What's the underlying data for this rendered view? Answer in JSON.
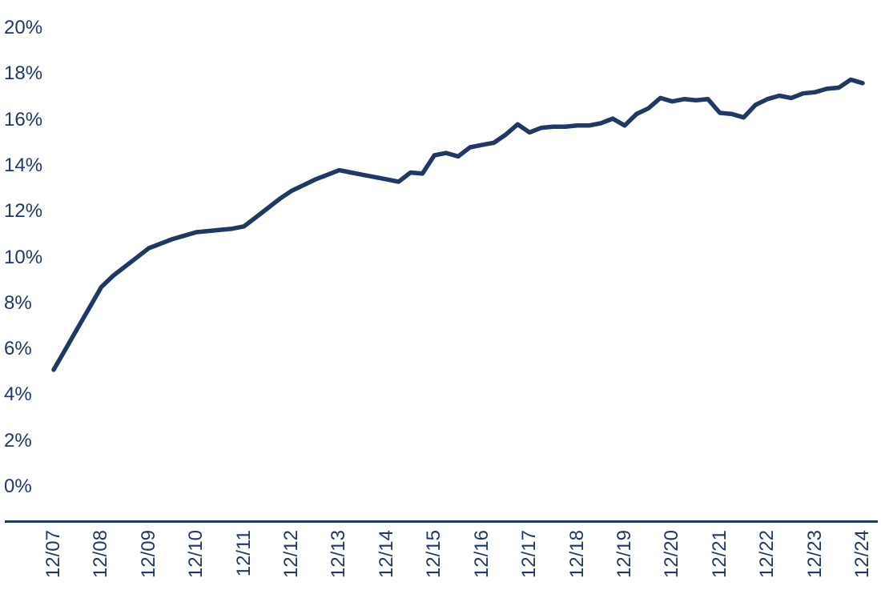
{
  "chart_data": {
    "type": "line",
    "title": "",
    "xlabel": "",
    "ylabel": "",
    "ylim": [
      0,
      20
    ],
    "y_tick_step_pct": 2,
    "grid": false,
    "legend": "none",
    "y_tick_labels_top_to_bottom": [
      "20%",
      "18%",
      "16%",
      "14%",
      "12%",
      "10%",
      "8%",
      "6%",
      "4%",
      "2%",
      "0%"
    ],
    "x_tick_labels": [
      "12/07",
      "12/08",
      "12/09",
      "12/10",
      "12/11",
      "12/12",
      "12/13",
      "12/14",
      "12/15",
      "12/16",
      "12/17",
      "12/18",
      "12/19",
      "12/20",
      "12/21",
      "12/22",
      "12/23",
      "12/24"
    ],
    "colors": {
      "line": "#1f3864",
      "axis": "#1f3864",
      "tick_text": "#1f3864",
      "background": "#ffffff"
    },
    "series": [
      {
        "name": "percentage-series",
        "frequency": "quarterly",
        "x_start": "2007-Q4 (12/07)",
        "x_end": "2024-Q4 (12/24)",
        "unit": "%",
        "values": [
          5.1,
          6.0,
          6.9,
          7.8,
          8.7,
          9.2,
          9.6,
          10.0,
          10.4,
          10.6,
          10.8,
          10.95,
          11.1,
          11.15,
          11.2,
          11.25,
          11.35,
          11.75,
          12.15,
          12.55,
          12.9,
          13.15,
          13.4,
          13.6,
          13.8,
          13.7,
          13.6,
          13.5,
          13.4,
          13.3,
          13.7,
          13.65,
          14.45,
          14.55,
          14.4,
          14.8,
          14.9,
          15.0,
          15.35,
          15.8,
          15.45,
          15.65,
          15.7,
          15.7,
          15.75,
          15.75,
          15.85,
          16.05,
          15.75,
          16.25,
          16.5,
          16.95,
          16.8,
          16.9,
          16.85,
          16.9,
          16.3,
          16.25,
          16.1,
          16.65,
          16.9,
          17.05,
          16.95,
          17.15,
          17.2,
          17.35,
          17.4,
          17.75,
          17.6
        ]
      }
    ],
    "annual_december_values": {
      "12/07": 5.1,
      "12/08": 8.7,
      "12/09": 10.4,
      "12/10": 11.1,
      "12/11": 11.35,
      "12/12": 12.9,
      "12/13": 13.8,
      "12/14": 13.4,
      "12/15": 14.45,
      "12/16": 14.9,
      "12/17": 15.45,
      "12/18": 15.75,
      "12/19": 15.75,
      "12/20": 16.8,
      "12/21": 16.3,
      "12/22": 16.9,
      "12/23": 17.2,
      "12/24": 17.6
    }
  }
}
